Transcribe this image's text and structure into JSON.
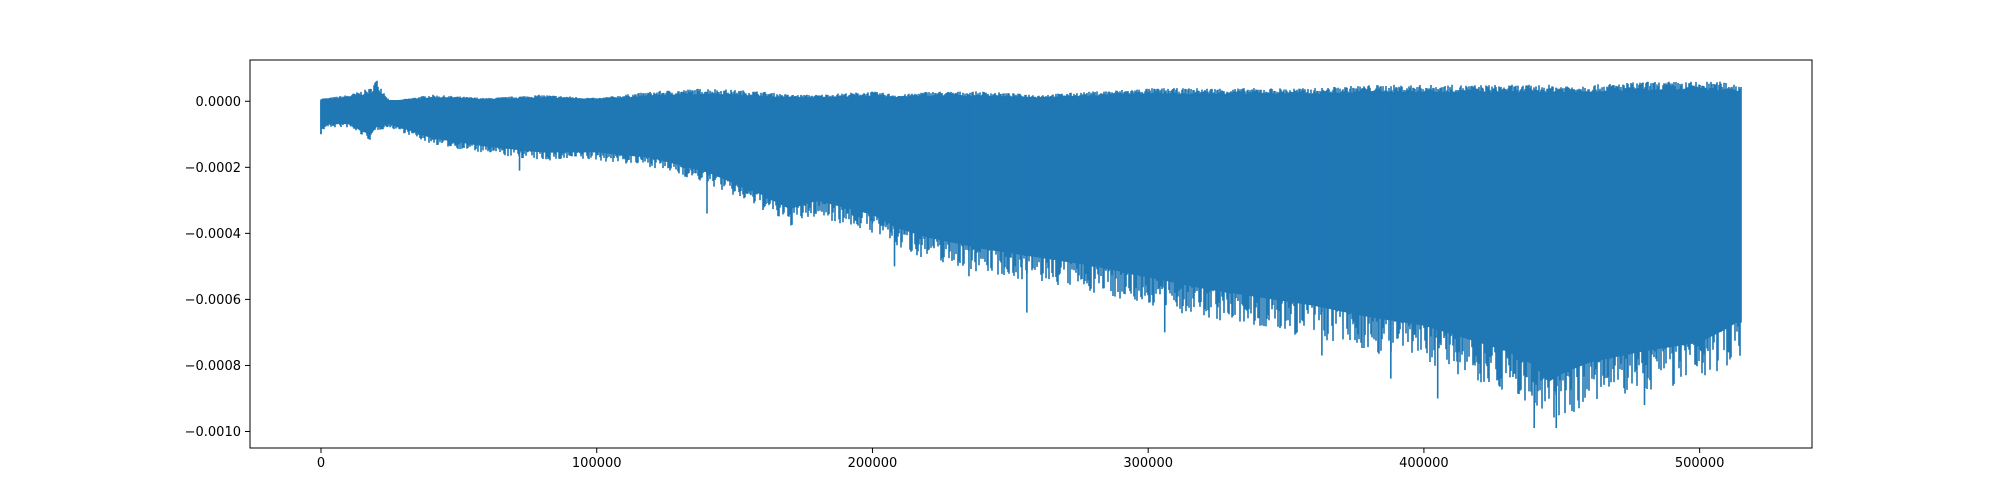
{
  "chart_data": {
    "type": "line",
    "title": "",
    "xlabel": "",
    "ylabel": "",
    "xlim": [
      -25750,
      540750
    ],
    "ylim": [
      -0.00105,
      0.000125
    ],
    "x_ticks": [
      0,
      100000,
      200000,
      300000,
      400000,
      500000
    ],
    "x_tick_labels": [
      "0",
      "100000",
      "200000",
      "300000",
      "400000",
      "500000"
    ],
    "y_ticks": [
      0.0,
      -0.0002,
      -0.0004,
      -0.0006,
      -0.0008,
      -0.001
    ],
    "y_tick_labels": [
      "0.0000",
      "−0.0002",
      "−0.0004",
      "−0.0006",
      "−0.0008",
      "−0.0010"
    ],
    "grid": false,
    "legend": false,
    "series": [
      {
        "color": "#1f77b4",
        "x_range": [
          0,
          515000
        ],
        "envelope": {
          "x": [
            0,
            2000,
            10000,
            18000,
            20000,
            25000,
            40000,
            60000,
            80000,
            100000,
            120000,
            140000,
            160000,
            170000,
            180000,
            200000,
            210000,
            220000,
            240000,
            260000,
            280000,
            300000,
            320000,
            340000,
            360000,
            380000,
            400000,
            420000,
            430000,
            440000,
            445000,
            450000,
            460000,
            480000,
            500000,
            510000,
            515000
          ],
          "upper": [
            1e-05,
            1e-05,
            2e-05,
            4e-05,
            7e-05,
            0.0,
            2e-05,
            1e-05,
            2e-05,
            1e-05,
            3e-05,
            4e-05,
            3e-05,
            2e-05,
            2e-05,
            3e-05,
            2e-05,
            3e-05,
            3e-05,
            2e-05,
            3e-05,
            4e-05,
            4e-05,
            4e-05,
            4e-05,
            5e-05,
            5e-05,
            5e-05,
            5e-05,
            5e-05,
            5e-05,
            5e-05,
            5e-05,
            6e-05,
            6e-05,
            6e-05,
            5e-05
          ],
          "lower": [
            -0.0001,
            -8e-05,
            -8e-05,
            -0.00012,
            -9e-05,
            -8e-05,
            -0.00013,
            -0.00016,
            -0.00018,
            -0.00018,
            -0.0002,
            -0.00025,
            -0.00033,
            -0.00038,
            -0.00035,
            -0.0004,
            -0.00045,
            -0.00048,
            -0.00052,
            -0.00055,
            -0.00058,
            -0.00062,
            -0.00066,
            -0.00069,
            -0.00072,
            -0.00076,
            -0.00079,
            -0.00085,
            -0.00088,
            -0.00093,
            -0.00099,
            -0.00096,
            -0.00092,
            -0.00088,
            -0.00085,
            -0.0008,
            -0.00077
          ],
          "spikes": [
            [
              0,
              -0.0001
            ],
            [
              72000,
              -0.00021
            ],
            [
              140000,
              -0.00034
            ],
            [
              200000,
              -0.00037
            ],
            [
              208000,
              -0.0005
            ],
            [
              235000,
              -0.00053
            ],
            [
              256000,
              -0.00064
            ],
            [
              306000,
              -0.0007
            ],
            [
              363000,
              -0.00077
            ],
            [
              388000,
              -0.00084
            ],
            [
              405000,
              -0.0009
            ],
            [
              440000,
              -0.00099
            ],
            [
              448000,
              -0.00099
            ],
            [
              480000,
              -0.00092
            ]
          ]
        }
      }
    ]
  }
}
